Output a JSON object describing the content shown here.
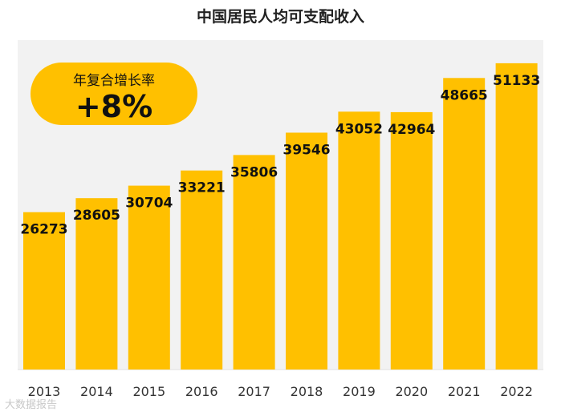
{
  "chart_data": {
    "type": "bar",
    "title": "中国居民人均可支配收入",
    "categories": [
      "2013",
      "2014",
      "2015",
      "2016",
      "2017",
      "2018",
      "2019",
      "2020",
      "2021",
      "2022"
    ],
    "values": [
      26273,
      28605,
      30704,
      33221,
      35806,
      39546,
      43052,
      42964,
      48665,
      51133
    ],
    "value_labels": [
      "26273",
      "28605",
      "30704",
      "33221",
      "35806",
      "39546",
      "43052",
      "42964",
      "48665",
      "51133"
    ],
    "xlabel": "",
    "ylabel": "",
    "ylim": [
      0,
      55000
    ],
    "grid": false,
    "bar_color": "#ffc000",
    "panel_color": "#f2f2f2"
  },
  "badge": {
    "label": "年复合增长率",
    "value": "+8%",
    "color": "#ffc000"
  },
  "watermark": "大数据报告"
}
